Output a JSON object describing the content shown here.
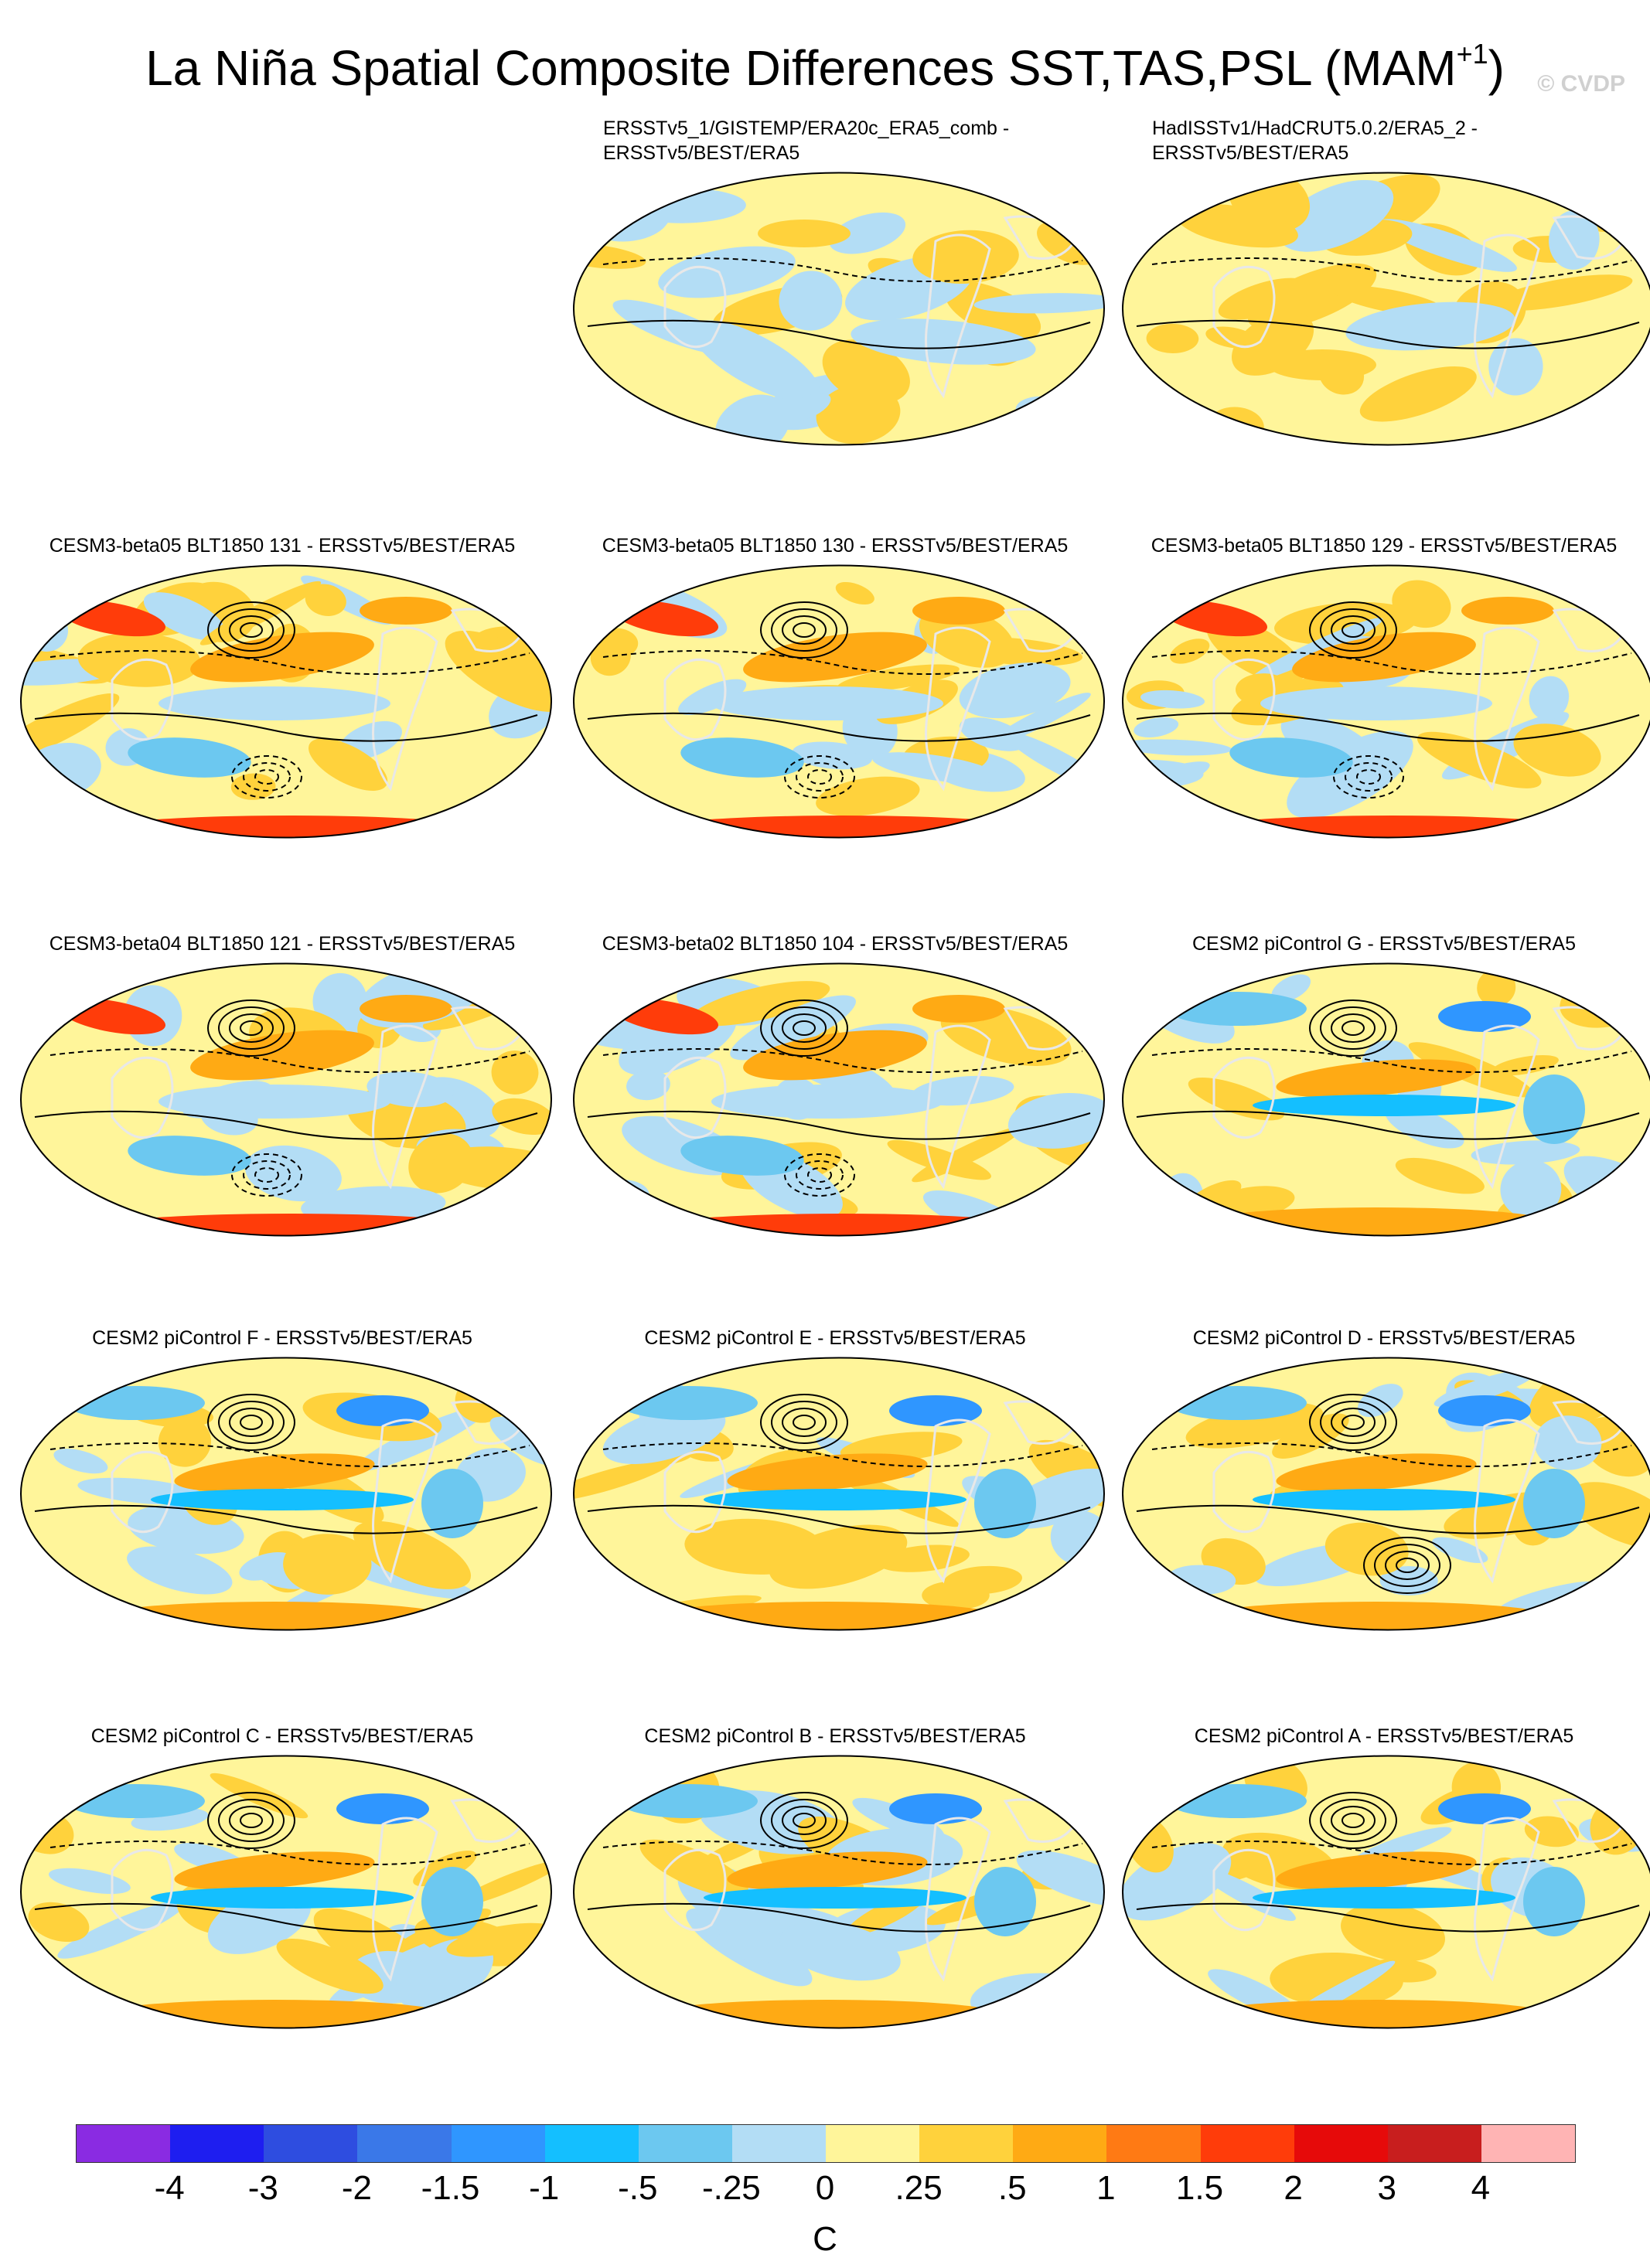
{
  "title": {
    "main": "La Niña Spatial Composite Differences SST,TAS,PSL (MAM",
    "sup": "+1",
    "close": ")"
  },
  "watermark": "© CVDP",
  "panels": [
    {
      "line1": "ERSSTv5_1/GISTEMP/ERA20c_ERA5_comb -",
      "line2": "ERSSTv5/BEST/ERA5",
      "pattern": "obs1",
      "lows": [],
      "highs": []
    },
    {
      "line1": "HadISSTv1/HadCRUT5.0.2/ERA5_2 -",
      "line2": "ERSSTv5/BEST/ERA5",
      "pattern": "obs2",
      "lows": [],
      "highs": []
    },
    {
      "line1": "CESM3-beta05 BLT1850 131 - ERSSTv5/BEST/ERA5",
      "line2": "",
      "pattern": "model",
      "lows": [
        "south-pacific"
      ],
      "highs": [
        "north-pacific"
      ]
    },
    {
      "line1": "CESM3-beta05 BLT1850 130 - ERSSTv5/BEST/ERA5",
      "line2": "",
      "pattern": "model",
      "lows": [
        "south-pacific"
      ],
      "highs": [
        "north-pacific"
      ]
    },
    {
      "line1": "CESM3-beta05 BLT1850 129 - ERSSTv5/BEST/ERA5",
      "line2": "",
      "pattern": "model",
      "lows": [
        "south-pacific"
      ],
      "highs": [
        "north-pacific"
      ]
    },
    {
      "line1": "CESM3-beta04 BLT1850 121 - ERSSTv5/BEST/ERA5",
      "line2": "",
      "pattern": "model",
      "lows": [
        "south-pacific"
      ],
      "highs": [
        "north-pacific"
      ]
    },
    {
      "line1": "CESM3-beta02 BLT1850 104 - ERSSTv5/BEST/ERA5",
      "line2": "",
      "pattern": "model",
      "lows": [
        "south-pacific"
      ],
      "highs": [
        "north-pacific"
      ]
    },
    {
      "line1": "CESM2 piControl G - ERSSTv5/BEST/ERA5",
      "line2": "",
      "pattern": "coldtongue",
      "lows": [],
      "highs": [
        "north-pacific"
      ]
    },
    {
      "line1": "CESM2 piControl F - ERSSTv5/BEST/ERA5",
      "line2": "",
      "pattern": "coldtongue",
      "lows": [],
      "highs": [
        "north-pacific"
      ]
    },
    {
      "line1": "CESM2 piControl E - ERSSTv5/BEST/ERA5",
      "line2": "",
      "pattern": "coldtongue",
      "lows": [],
      "highs": [
        "north-pacific"
      ]
    },
    {
      "line1": "CESM2 piControl D - ERSSTv5/BEST/ERA5",
      "line2": "",
      "pattern": "coldtongue",
      "lows": [],
      "highs": [
        "north-pacific",
        "south-pacific"
      ]
    },
    {
      "line1": "CESM2 piControl C - ERSSTv5/BEST/ERA5",
      "line2": "",
      "pattern": "coldtongue",
      "lows": [],
      "highs": [
        "north-pacific"
      ]
    },
    {
      "line1": "CESM2 piControl B - ERSSTv5/BEST/ERA5",
      "line2": "",
      "pattern": "coldtongue",
      "lows": [],
      "highs": [
        "north-pacific"
      ]
    },
    {
      "line1": "CESM2 piControl A - ERSSTv5/BEST/ERA5",
      "line2": "",
      "pattern": "coldtongue",
      "lows": [],
      "highs": [
        "north-pacific"
      ]
    }
  ],
  "colorbar": {
    "colors": [
      "#8a2be2",
      "#1e1ef0",
      "#2e4de0",
      "#3a78e8",
      "#2f96ff",
      "#14bfff",
      "#6cc8f0",
      "#b3ddf5",
      "#fff59a",
      "#ffd23c",
      "#ffaa14",
      "#ff7a14",
      "#ff3c0a",
      "#e60a0a",
      "#c81e1e",
      "#ffb4b4"
    ],
    "ticks": [
      "-4",
      "-3",
      "-2",
      "-1.5",
      "-1",
      "-.5",
      "-.25",
      "0",
      ".25",
      ".5",
      "1",
      "1.5",
      "2",
      "3",
      "4"
    ],
    "unit": "C"
  }
}
